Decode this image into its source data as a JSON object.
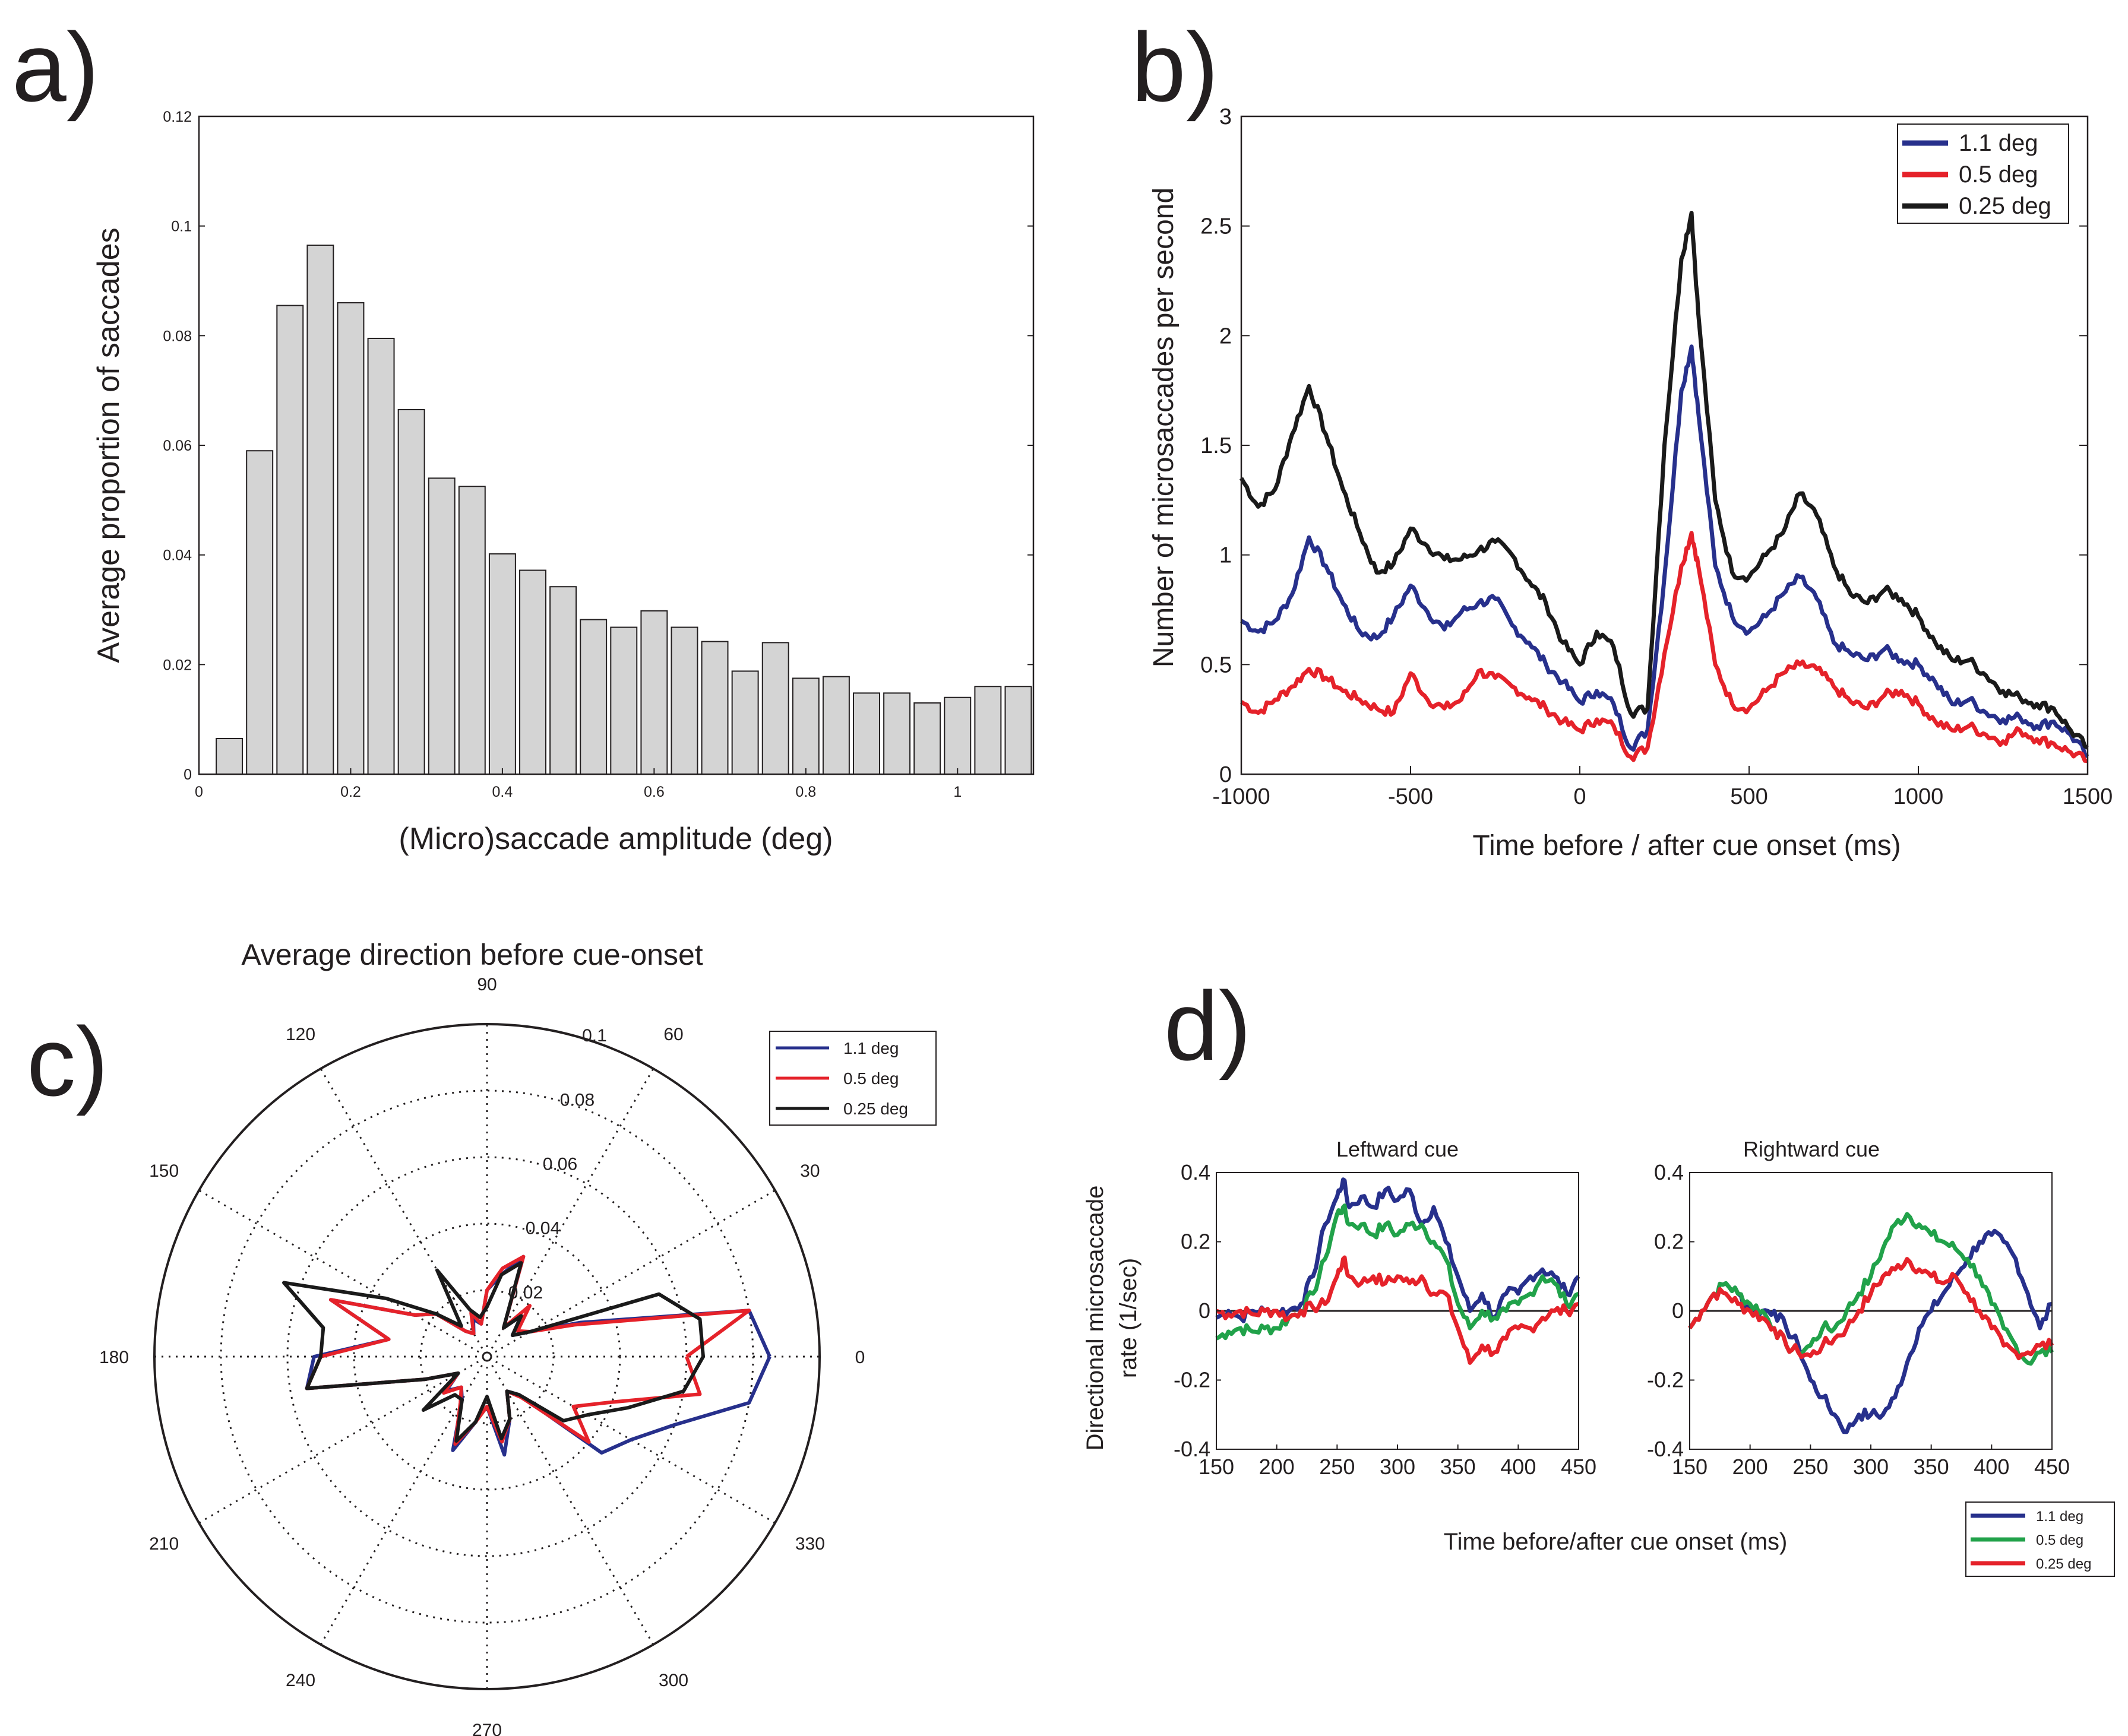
{
  "colors": {
    "blue": "#27308c",
    "red": "#e5222a",
    "black": "#1a1a1a",
    "green": "#21a24a",
    "bar_fill": "#d4d4d4",
    "bar_edge": "#231f20"
  },
  "panel_labels": {
    "a": "a)",
    "b": "b)",
    "c": "c)",
    "d": "d)"
  },
  "chart_data": [
    {
      "id": "a",
      "type": "bar",
      "xlabel": "(Micro)saccade amplitude (deg)",
      "ylabel": "Average proportion of saccades",
      "xlim": [
        0,
        1.1
      ],
      "ylim": [
        0,
        0.12
      ],
      "xticks": [
        "0",
        "0.2",
        "0.4",
        "0.6",
        "0.8",
        "1"
      ],
      "yticks": [
        "0",
        "0.02",
        "0.04",
        "0.06",
        "0.08",
        "0.1",
        "0.12"
      ],
      "bin_width": 0.04,
      "categories": [
        0.04,
        0.08,
        0.12,
        0.16,
        0.2,
        0.24,
        0.28,
        0.32,
        0.36,
        0.4,
        0.44,
        0.48,
        0.52,
        0.56,
        0.6,
        0.64,
        0.68,
        0.72,
        0.76,
        0.8,
        0.84,
        0.88,
        0.92,
        0.96,
        1.0,
        1.04,
        1.08
      ],
      "values": [
        0.0065,
        0.059,
        0.0855,
        0.0965,
        0.086,
        0.0795,
        0.0665,
        0.054,
        0.0525,
        0.0402,
        0.0372,
        0.0342,
        0.0282,
        0.0268,
        0.0298,
        0.0268,
        0.0242,
        0.0188,
        0.024,
        0.0175,
        0.0178,
        0.0148,
        0.0148,
        0.013,
        0.014,
        0.016,
        0.016
      ]
    },
    {
      "id": "b",
      "type": "line",
      "xlabel": "Time before / after cue onset (ms)",
      "ylabel": "Number of microsaccades per second",
      "xlim": [
        -1000,
        1500
      ],
      "ylim": [
        0,
        3
      ],
      "xticks": [
        "-1000",
        "-500",
        "0",
        "500",
        "1000",
        "1500"
      ],
      "yticks": [
        "0",
        "0.5",
        "1",
        "1.5",
        "2",
        "2.5",
        "3"
      ],
      "legend": [
        "1.1 deg",
        "0.5 deg",
        "0.25 deg"
      ],
      "x": [
        -1000,
        -950,
        -900,
        -850,
        -800,
        -750,
        -700,
        -650,
        -600,
        -550,
        -500,
        -450,
        -400,
        -350,
        -300,
        -250,
        -200,
        -150,
        -100,
        -50,
        0,
        50,
        100,
        150,
        200,
        250,
        300,
        330,
        350,
        400,
        450,
        500,
        550,
        600,
        650,
        700,
        750,
        800,
        850,
        900,
        950,
        1000,
        1050,
        1100,
        1150,
        1200,
        1250,
        1300,
        1350,
        1400,
        1450,
        1500
      ],
      "series": [
        {
          "name": "1.1 deg",
          "values": [
            0.7,
            0.65,
            0.7,
            0.82,
            1.08,
            0.95,
            0.78,
            0.65,
            0.62,
            0.72,
            0.86,
            0.74,
            0.66,
            0.74,
            0.78,
            0.8,
            0.68,
            0.6,
            0.5,
            0.42,
            0.33,
            0.38,
            0.32,
            0.12,
            0.2,
            0.9,
            1.75,
            1.95,
            1.65,
            0.95,
            0.72,
            0.65,
            0.72,
            0.82,
            0.9,
            0.8,
            0.6,
            0.55,
            0.52,
            0.57,
            0.52,
            0.5,
            0.42,
            0.32,
            0.34,
            0.28,
            0.25,
            0.26,
            0.22,
            0.24,
            0.18,
            0.08
          ]
        },
        {
          "name": "0.5 deg",
          "values": [
            0.33,
            0.28,
            0.34,
            0.4,
            0.48,
            0.44,
            0.38,
            0.34,
            0.3,
            0.28,
            0.46,
            0.34,
            0.3,
            0.34,
            0.47,
            0.44,
            0.4,
            0.35,
            0.3,
            0.24,
            0.2,
            0.25,
            0.22,
            0.08,
            0.12,
            0.55,
            0.95,
            1.1,
            0.95,
            0.5,
            0.32,
            0.3,
            0.38,
            0.46,
            0.5,
            0.48,
            0.4,
            0.33,
            0.3,
            0.36,
            0.38,
            0.32,
            0.24,
            0.2,
            0.22,
            0.18,
            0.15,
            0.2,
            0.16,
            0.14,
            0.1,
            0.06
          ]
        },
        {
          "name": "0.25 deg",
          "values": [
            1.35,
            1.22,
            1.3,
            1.55,
            1.77,
            1.55,
            1.3,
            1.1,
            0.92,
            0.96,
            1.12,
            1.04,
            0.98,
            0.98,
            1.02,
            1.06,
            1.0,
            0.88,
            0.78,
            0.6,
            0.5,
            0.65,
            0.58,
            0.28,
            0.3,
            1.5,
            2.35,
            2.56,
            2.1,
            1.25,
            0.92,
            0.9,
            1.0,
            1.1,
            1.28,
            1.18,
            0.95,
            0.82,
            0.78,
            0.84,
            0.8,
            0.72,
            0.6,
            0.52,
            0.52,
            0.45,
            0.38,
            0.35,
            0.32,
            0.3,
            0.2,
            0.12
          ]
        }
      ]
    },
    {
      "id": "c",
      "type": "polar",
      "title": "Average direction before cue-onset",
      "rmax": 0.1,
      "radial_ticks": [
        "0.02",
        "0.04",
        "0.06",
        "0.08",
        "0.1"
      ],
      "angle_labels": [
        "0",
        "30",
        "60",
        "90",
        "120",
        "150",
        "180",
        "210",
        "240",
        "270",
        "300",
        "330"
      ],
      "legend": [
        "1.1 deg",
        "0.5 deg",
        "0.25 deg"
      ],
      "angles_deg": [
        0,
        10,
        20,
        30,
        40,
        50,
        60,
        70,
        80,
        90,
        100,
        110,
        120,
        130,
        140,
        150,
        160,
        170,
        180,
        190,
        200,
        210,
        220,
        230,
        240,
        250,
        260,
        270,
        280,
        290,
        300,
        310,
        320,
        330,
        340,
        350,
        360
      ],
      "series": [
        {
          "name": "1.1 deg",
          "values": [
            0.085,
            0.08,
            0.03,
            0.015,
            0.01,
            0.016,
            0.01,
            0.032,
            0.025,
            0.02,
            0.01,
            0.012,
            0.008,
            0.01,
            0.02,
            0.025,
            0.05,
            0.03,
            0.052,
            0.055,
            0.02,
            0.01,
            0.016,
            0.012,
            0.015,
            0.03,
            0.02,
            0.015,
            0.03,
            0.02,
            0.012,
            0.015,
            0.045,
            0.05,
            0.06,
            0.08,
            0.085
          ]
        },
        {
          "name": "0.5 deg",
          "values": [
            0.06,
            0.08,
            0.028,
            0.015,
            0.012,
            0.02,
            0.01,
            0.032,
            0.027,
            0.02,
            0.01,
            0.014,
            0.008,
            0.01,
            0.02,
            0.025,
            0.05,
            0.03,
            0.05,
            0.055,
            0.02,
            0.01,
            0.017,
            0.012,
            0.016,
            0.028,
            0.02,
            0.015,
            0.026,
            0.02,
            0.012,
            0.016,
            0.04,
            0.03,
            0.04,
            0.065,
            0.06
          ]
        },
        {
          "name": "0.25 deg",
          "values": [
            0.065,
            0.065,
            0.055,
            0.015,
            0.01,
            0.016,
            0.01,
            0.03,
            0.025,
            0.015,
            0.012,
            0.015,
            0.03,
            0.012,
            0.02,
            0.035,
            0.065,
            0.05,
            0.05,
            0.055,
            0.02,
            0.01,
            0.025,
            0.015,
            0.015,
            0.027,
            0.02,
            0.012,
            0.025,
            0.02,
            0.012,
            0.015,
            0.03,
            0.035,
            0.045,
            0.06,
            0.065
          ]
        }
      ]
    },
    {
      "id": "d-left",
      "type": "line",
      "title": "Leftward cue",
      "xlabel": "Time before/after cue onset (ms)",
      "ylabel": "Directional microsaccade rate (1/sec)",
      "xlim": [
        150,
        450
      ],
      "ylim": [
        -0.4,
        0.4
      ],
      "xticks": [
        "150",
        "200",
        "250",
        "300",
        "350",
        "400",
        "450"
      ],
      "yticks": [
        "-0.4",
        "-0.2",
        "0",
        "0.2",
        "0.4"
      ],
      "x": [
        150,
        160,
        170,
        180,
        190,
        200,
        210,
        220,
        230,
        240,
        250,
        255,
        260,
        270,
        280,
        290,
        300,
        310,
        320,
        330,
        340,
        350,
        360,
        370,
        380,
        390,
        400,
        410,
        420,
        430,
        440,
        450
      ],
      "series": [
        {
          "name": "1.1 deg",
          "values": [
            -0.02,
            0.0,
            -0.02,
            0.0,
            0.0,
            0.0,
            0.0,
            0.02,
            0.1,
            0.25,
            0.33,
            0.38,
            0.3,
            0.33,
            0.3,
            0.35,
            0.32,
            0.35,
            0.25,
            0.3,
            0.2,
            0.1,
            0.0,
            0.05,
            -0.02,
            0.05,
            0.05,
            0.1,
            0.12,
            0.1,
            0.05,
            0.1
          ]
        },
        {
          "name": "0.5 deg",
          "values": [
            -0.08,
            -0.06,
            -0.05,
            -0.06,
            -0.05,
            -0.05,
            -0.02,
            0.0,
            0.05,
            0.15,
            0.28,
            0.3,
            0.25,
            0.25,
            0.22,
            0.25,
            0.22,
            0.25,
            0.25,
            0.2,
            0.15,
            0.02,
            -0.05,
            0.0,
            -0.02,
            0.0,
            0.02,
            0.05,
            0.1,
            0.08,
            0.02,
            0.05
          ]
        },
        {
          "name": "0.25 deg",
          "values": [
            0.0,
            -0.01,
            0.0,
            -0.01,
            0.0,
            0.0,
            -0.02,
            0.0,
            0.01,
            0.02,
            0.1,
            0.15,
            0.1,
            0.08,
            0.1,
            0.08,
            0.1,
            0.08,
            0.1,
            0.05,
            0.05,
            -0.05,
            -0.15,
            -0.1,
            -0.12,
            -0.08,
            -0.05,
            -0.05,
            -0.02,
            0.0,
            0.0,
            0.02
          ]
        }
      ]
    },
    {
      "id": "d-right",
      "type": "line",
      "title": "Rightward cue",
      "xlabel": "Time before/after cue onset (ms)",
      "xlim": [
        150,
        450
      ],
      "ylim": [
        -0.4,
        0.4
      ],
      "xticks": [
        "150",
        "200",
        "250",
        "300",
        "350",
        "400",
        "450"
      ],
      "yticks": [
        "-0.4",
        "-0.2",
        "0",
        "0.2",
        "0.4"
      ],
      "legend": [
        "1.1 deg",
        "0.5 deg",
        "0.25 deg"
      ],
      "x": [
        150,
        160,
        170,
        180,
        190,
        200,
        210,
        220,
        230,
        240,
        250,
        260,
        270,
        280,
        290,
        300,
        310,
        320,
        330,
        340,
        350,
        360,
        370,
        380,
        390,
        400,
        410,
        420,
        430,
        440,
        450
      ],
      "series": [
        {
          "name": "1.1 deg",
          "values": [
            -0.05,
            0.0,
            0.05,
            0.08,
            0.05,
            0.0,
            0.0,
            0.0,
            -0.05,
            -0.1,
            -0.2,
            -0.25,
            -0.3,
            -0.35,
            -0.3,
            -0.3,
            -0.3,
            -0.25,
            -0.15,
            -0.05,
            0.0,
            0.05,
            0.1,
            0.15,
            0.2,
            0.22,
            0.2,
            0.15,
            0.05,
            -0.05,
            0.02
          ]
        },
        {
          "name": "0.5 deg",
          "values": [
            -0.05,
            0.0,
            0.05,
            0.08,
            0.05,
            0.02,
            0.0,
            -0.05,
            -0.1,
            -0.12,
            -0.1,
            -0.05,
            -0.05,
            0.0,
            0.05,
            0.1,
            0.18,
            0.25,
            0.28,
            0.25,
            0.22,
            0.2,
            0.18,
            0.15,
            0.1,
            0.02,
            -0.05,
            -0.1,
            -0.15,
            -0.12,
            -0.12
          ]
        },
        {
          "name": "0.25 deg",
          "values": [
            -0.05,
            0.0,
            0.05,
            0.05,
            0.02,
            0.0,
            -0.02,
            -0.05,
            -0.1,
            -0.12,
            -0.13,
            -0.1,
            -0.08,
            -0.05,
            0.0,
            0.05,
            0.1,
            0.12,
            0.15,
            0.12,
            0.1,
            0.08,
            0.1,
            0.05,
            0.0,
            -0.05,
            -0.1,
            -0.12,
            -0.12,
            -0.1,
            -0.1
          ]
        }
      ]
    }
  ]
}
